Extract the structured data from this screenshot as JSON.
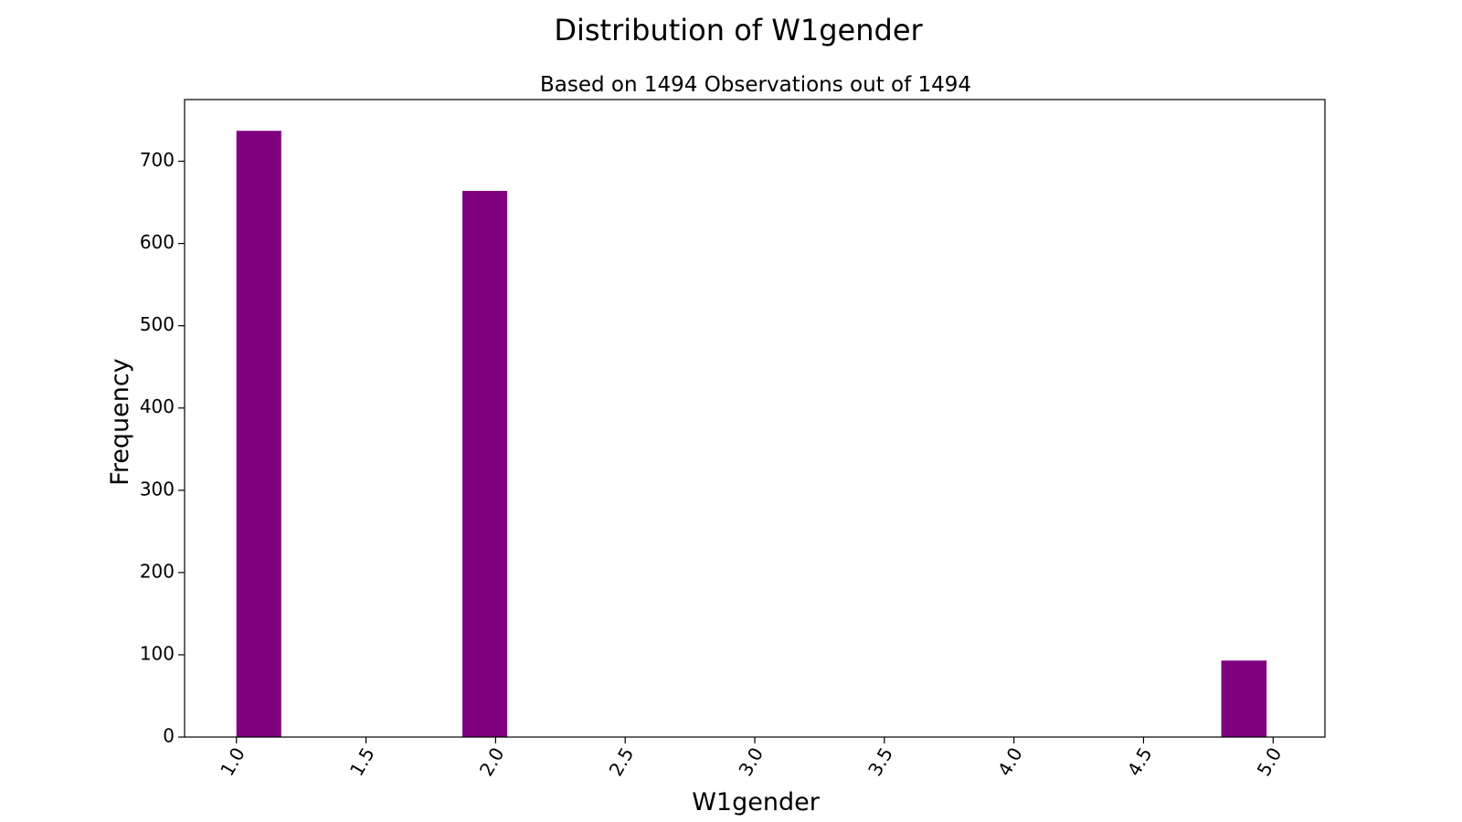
{
  "chart_data": {
    "type": "bar",
    "title": "Distribution of W1gender",
    "subtitle": "Based on 1494 Observations out of 1494",
    "xlabel": "W1gender",
    "ylabel": "Frequency",
    "bar_color": "#800080",
    "xlim": [
      0.8,
      5.2
    ],
    "ylim": [
      0,
      775
    ],
    "xticks": [
      1.0,
      1.5,
      2.0,
      2.5,
      3.0,
      3.5,
      4.0,
      4.5,
      5.0
    ],
    "xtick_labels": [
      "1.0",
      "1.5",
      "2.0",
      "2.5",
      "3.0",
      "3.5",
      "4.0",
      "4.5",
      "5.0"
    ],
    "yticks": [
      0,
      100,
      200,
      300,
      400,
      500,
      600,
      700
    ],
    "ytick_labels": [
      "0",
      "100",
      "200",
      "300",
      "400",
      "500",
      "600",
      "700"
    ],
    "bars": [
      {
        "x_start": 1.0,
        "x_end": 1.173,
        "value": 737
      },
      {
        "x_start": 1.872,
        "x_end": 2.045,
        "value": 664
      },
      {
        "x_start": 4.8,
        "x_end": 4.975,
        "value": 93
      }
    ],
    "grid": false,
    "legend": null
  }
}
